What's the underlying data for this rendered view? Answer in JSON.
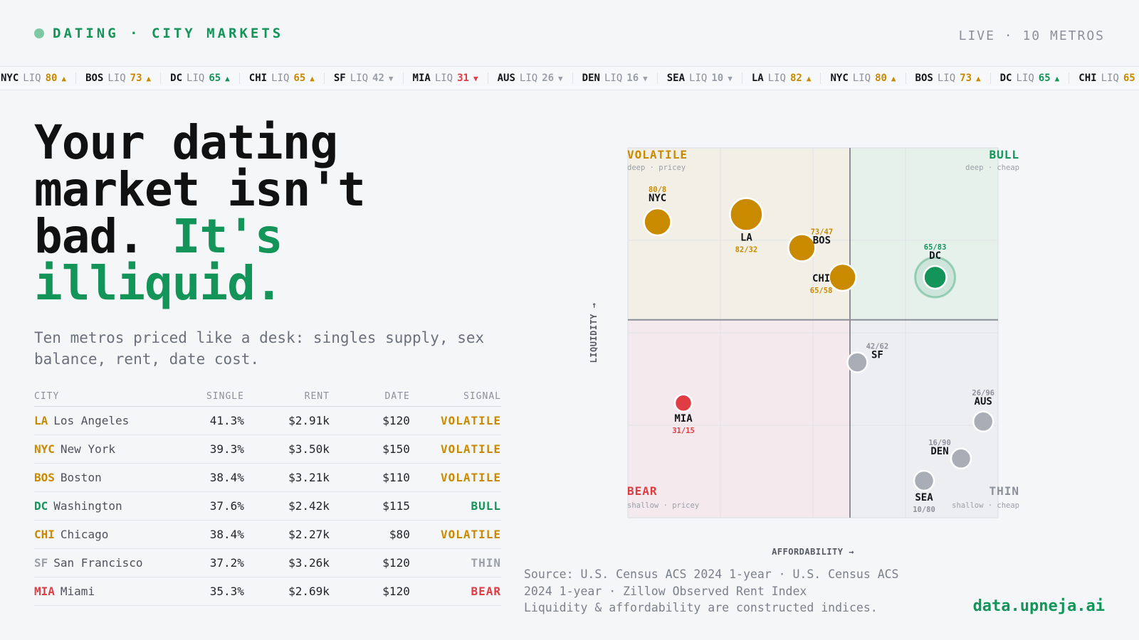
{
  "header": {
    "brand": "DATING · CITY MARKETS",
    "status": "LIVE · 10 METROS"
  },
  "ticker": {
    "label": "LIQ",
    "items": [
      {
        "city": "NYC",
        "value": 80,
        "dir": "up",
        "color": "#c98a00"
      },
      {
        "city": "BOS",
        "value": 73,
        "dir": "up",
        "color": "#c98a00"
      },
      {
        "city": "DC",
        "value": 65,
        "dir": "up",
        "color": "#13955a"
      },
      {
        "city": "CHI",
        "value": 65,
        "dir": "up",
        "color": "#c98a00"
      },
      {
        "city": "SF",
        "value": 42,
        "dir": "down",
        "color": "#9aa0a8"
      },
      {
        "city": "MIA",
        "value": 31,
        "dir": "down",
        "color": "#e03c44"
      },
      {
        "city": "AUS",
        "value": 26,
        "dir": "down",
        "color": "#9aa0a8"
      },
      {
        "city": "DEN",
        "value": 16,
        "dir": "down",
        "color": "#9aa0a8"
      },
      {
        "city": "SEA",
        "value": 10,
        "dir": "down",
        "color": "#9aa0a8"
      },
      {
        "city": "LA",
        "value": 82,
        "dir": "up",
        "color": "#c98a00"
      }
    ]
  },
  "hero": {
    "line1": "Your dating",
    "line2": "market isn't",
    "line3a": "bad. ",
    "line3b": "It's",
    "line4": "illiquid.",
    "subtitle": "Ten metros priced like a desk: singles supply, sex balance, rent, date cost."
  },
  "table": {
    "headers": {
      "city": "CITY",
      "single": "SINGLE",
      "rent": "RENT",
      "date": "DATE",
      "signal": "SIGNAL"
    },
    "rows": [
      {
        "code": "LA",
        "name": "Los Angeles",
        "single": "41.3%",
        "rent": "$2.91k",
        "date": "$120",
        "signal": "VOLATILE",
        "color": "#c98a00"
      },
      {
        "code": "NYC",
        "name": "New York",
        "single": "39.3%",
        "rent": "$3.50k",
        "date": "$150",
        "signal": "VOLATILE",
        "color": "#c98a00"
      },
      {
        "code": "BOS",
        "name": "Boston",
        "single": "38.4%",
        "rent": "$3.21k",
        "date": "$110",
        "signal": "VOLATILE",
        "color": "#c98a00"
      },
      {
        "code": "DC",
        "name": "Washington",
        "single": "37.6%",
        "rent": "$2.42k",
        "date": "$115",
        "signal": "BULL",
        "color": "#13955a"
      },
      {
        "code": "CHI",
        "name": "Chicago",
        "single": "38.4%",
        "rent": "$2.27k",
        "date": "$80",
        "signal": "VOLATILE",
        "color": "#c98a00"
      },
      {
        "code": "SF",
        "name": "San Francisco",
        "single": "37.2%",
        "rent": "$3.26k",
        "date": "$120",
        "signal": "THIN",
        "color": "#9aa0a8"
      },
      {
        "code": "MIA",
        "name": "Miami",
        "single": "35.3%",
        "rent": "$2.69k",
        "date": "$120",
        "signal": "BEAR",
        "color": "#e03c44"
      }
    ]
  },
  "chart_data": {
    "type": "scatter",
    "xlabel": "AFFORDABILITY →",
    "ylabel": "LIQUIDITY →",
    "xlim": [
      0,
      100
    ],
    "ylim": [
      0,
      100
    ],
    "divider": {
      "x": 60,
      "y": 53.5
    },
    "quadrants": [
      {
        "name": "VOLATILE",
        "sub": "deep · pricey",
        "color": "#c98a00",
        "corner": "top-left"
      },
      {
        "name": "BULL",
        "sub": "deep · cheap",
        "color": "#13955a",
        "corner": "top-right"
      },
      {
        "name": "BEAR",
        "sub": "shallow · pricey",
        "color": "#e03c44",
        "corner": "bottom-left"
      },
      {
        "name": "THIN",
        "sub": "shallow · cheap",
        "color": "#8b909a",
        "corner": "bottom-right"
      }
    ],
    "points": [
      {
        "city": "NYC",
        "liquidity": 80,
        "affordability": 8,
        "label": "80/8",
        "signal": "VOLATILE",
        "color": "#c98a00"
      },
      {
        "city": "LA",
        "liquidity": 82,
        "affordability": 32,
        "label": "82/32",
        "signal": "VOLATILE",
        "color": "#c98a00"
      },
      {
        "city": "BOS",
        "liquidity": 73,
        "affordability": 47,
        "label": "73/47",
        "signal": "VOLATILE",
        "color": "#c98a00"
      },
      {
        "city": "CHI",
        "liquidity": 65,
        "affordability": 58,
        "label": "65/58",
        "signal": "VOLATILE",
        "color": "#c98a00"
      },
      {
        "city": "DC",
        "liquidity": 65,
        "affordability": 83,
        "label": "65/83",
        "signal": "BULL",
        "color": "#13955a"
      },
      {
        "city": "SF",
        "liquidity": 42,
        "affordability": 62,
        "label": "42/62",
        "signal": "THIN",
        "color": "#a9aeb6"
      },
      {
        "city": "MIA",
        "liquidity": 31,
        "affordability": 15,
        "label": "31/15",
        "signal": "BEAR",
        "color": "#e03c44"
      },
      {
        "city": "AUS",
        "liquidity": 26,
        "affordability": 96,
        "label": "26/96",
        "signal": "THIN",
        "color": "#a9aeb6"
      },
      {
        "city": "DEN",
        "liquidity": 16,
        "affordability": 90,
        "label": "16/90",
        "signal": "THIN",
        "color": "#a9aeb6"
      },
      {
        "city": "SEA",
        "liquidity": 10,
        "affordability": 80,
        "label": "10/80",
        "signal": "THIN",
        "color": "#a9aeb6"
      }
    ]
  },
  "source": {
    "line1": "Source: U.S. Census ACS 2024 1-year · U.S. Census ACS 2024 1-year · Zillow Observed Rent Index",
    "line2": "Liquidity & affordability are constructed indices."
  },
  "footer": {
    "site": "data.upneja.ai"
  }
}
